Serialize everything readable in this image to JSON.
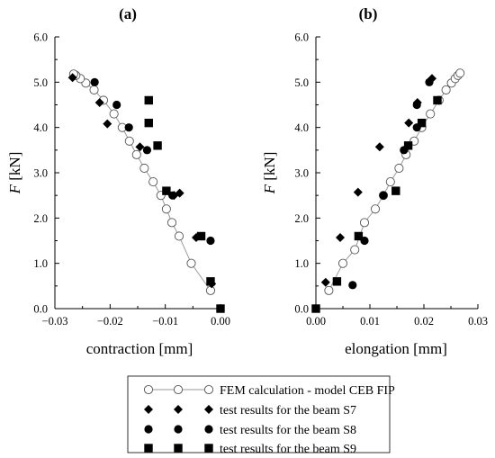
{
  "chart_data": [
    {
      "panel_label": "(a)",
      "type": "scatter",
      "xlabel": "contraction [mm]",
      "ylabel_var": "F",
      "ylabel_unit": " [kN]",
      "xlim": [
        -0.03,
        0.0
      ],
      "ylim": [
        0.0,
        6.0
      ],
      "xticks": [
        -0.03,
        -0.02,
        -0.01,
        0.0
      ],
      "xtick_labels": [
        "−0.03",
        "−0.02",
        "−0.01",
        "0.00"
      ],
      "yticks": [
        0,
        1,
        2,
        3,
        4,
        5,
        6
      ],
      "ytick_labels": [
        "0.0",
        "1.0",
        "2.0",
        "3.0",
        "4.0",
        "5.0",
        "6.0"
      ],
      "series": [
        {
          "name": "FEM calculation - model CEB FIP",
          "marker": "open-circle-line",
          "points": [
            [
              -0.0018,
              0.4
            ],
            [
              -0.0053,
              1.0
            ],
            [
              -0.0075,
              1.6
            ],
            [
              -0.0088,
              1.9
            ],
            [
              -0.0098,
              2.2
            ],
            [
              -0.0108,
              2.5
            ],
            [
              -0.0122,
              2.8
            ],
            [
              -0.0138,
              3.1
            ],
            [
              -0.0152,
              3.4
            ],
            [
              -0.0165,
              3.7
            ],
            [
              -0.0178,
              4.0
            ],
            [
              -0.0193,
              4.3
            ],
            [
              -0.0212,
              4.6
            ],
            [
              -0.0229,
              4.83
            ],
            [
              -0.0244,
              4.98
            ],
            [
              -0.0254,
              5.08
            ],
            [
              -0.0262,
              5.15
            ],
            [
              -0.0266,
              5.18
            ]
          ]
        },
        {
          "name": "test results for the beam S7",
          "marker": "diamond",
          "points": [
            [
              -0.0016,
              0.55
            ],
            [
              -0.0044,
              1.57
            ],
            [
              -0.0074,
              2.55
            ],
            [
              -0.0084,
              2.5
            ],
            [
              -0.0146,
              3.57
            ],
            [
              -0.0205,
              4.08
            ],
            [
              -0.0219,
              4.55
            ],
            [
              -0.0268,
              5.1
            ]
          ]
        },
        {
          "name": "test results for the beam S8",
          "marker": "circle",
          "points": [
            [
              -0.0018,
              1.5
            ],
            [
              -0.0087,
              2.5
            ],
            [
              -0.0133,
              3.5
            ],
            [
              -0.0166,
              4.0
            ],
            [
              -0.0188,
              4.5
            ],
            [
              -0.0228,
              5.0
            ]
          ]
        },
        {
          "name": "test results for the beam S9",
          "marker": "square",
          "points": [
            [
              0.0,
              0.0
            ],
            [
              -0.0018,
              0.6
            ],
            [
              -0.0035,
              1.6
            ],
            [
              -0.0098,
              2.6
            ],
            [
              -0.0114,
              3.6
            ],
            [
              -0.013,
              4.1
            ],
            [
              -0.013,
              4.6
            ]
          ]
        }
      ]
    },
    {
      "panel_label": "(b)",
      "type": "scatter",
      "xlabel": "elongation [mm]",
      "ylabel_var": "F",
      "ylabel_unit": " [kN]",
      "xlim": [
        0.0,
        0.03
      ],
      "ylim": [
        0.0,
        6.0
      ],
      "xticks": [
        0.0,
        0.01,
        0.02,
        0.03
      ],
      "xtick_labels": [
        "0.00",
        "0.01",
        "0.02",
        "0.03"
      ],
      "yticks": [
        0,
        1,
        2,
        3,
        4,
        5,
        6
      ],
      "ytick_labels": [
        "0.0",
        "1.0",
        "2.0",
        "3.0",
        "4.0",
        "5.0",
        "6.0"
      ],
      "series": [
        {
          "name": "FEM calculation - model CEB FIP",
          "marker": "open-circle-line",
          "points": [
            [
              0.0024,
              0.4
            ],
            [
              0.005,
              1.0
            ],
            [
              0.0072,
              1.3
            ],
            [
              0.009,
              1.9
            ],
            [
              0.011,
              2.2
            ],
            [
              0.0125,
              2.5
            ],
            [
              0.0138,
              2.8
            ],
            [
              0.0154,
              3.1
            ],
            [
              0.0167,
              3.4
            ],
            [
              0.0182,
              3.7
            ],
            [
              0.0196,
              4.0
            ],
            [
              0.0212,
              4.3
            ],
            [
              0.0228,
              4.6
            ],
            [
              0.0241,
              4.83
            ],
            [
              0.0251,
              4.98
            ],
            [
              0.0258,
              5.08
            ],
            [
              0.0263,
              5.15
            ],
            [
              0.0267,
              5.2
            ]
          ]
        },
        {
          "name": "test results for the beam S7",
          "marker": "diamond",
          "points": [
            [
              0.0018,
              0.58
            ],
            [
              0.0045,
              1.57
            ],
            [
              0.0078,
              2.57
            ],
            [
              0.0118,
              3.57
            ],
            [
              0.0172,
              4.1
            ],
            [
              0.0188,
              4.55
            ],
            [
              0.0215,
              5.08
            ]
          ]
        },
        {
          "name": "test results for the beam S8",
          "marker": "circle",
          "points": [
            [
              0.0068,
              0.52
            ],
            [
              0.009,
              1.5
            ],
            [
              0.0125,
              2.5
            ],
            [
              0.0163,
              3.5
            ],
            [
              0.0187,
              4.0
            ],
            [
              0.0187,
              4.5
            ],
            [
              0.021,
              5.0
            ]
          ]
        },
        {
          "name": "test results for the beam S9",
          "marker": "square",
          "points": [
            [
              0.0,
              0.0
            ],
            [
              0.0039,
              0.6
            ],
            [
              0.0079,
              1.6
            ],
            [
              0.0148,
              2.6
            ],
            [
              0.0171,
              3.6
            ],
            [
              0.0196,
              4.1
            ],
            [
              0.0225,
              4.6
            ]
          ]
        }
      ]
    }
  ],
  "legend": {
    "position": "bottom-center",
    "entries": [
      {
        "label": "FEM calculation - model CEB FIP",
        "marker": "open-circle-line"
      },
      {
        "label": "test results for the beam S7",
        "marker": "diamond"
      },
      {
        "label": "test results for the beam S8",
        "marker": "circle"
      },
      {
        "label": "test results for the beam S9",
        "marker": "square"
      }
    ]
  },
  "colors": {
    "axes": "#000000",
    "fem_line": "#9a9a9a",
    "fem_marker": "#555555",
    "markers": "#000000"
  }
}
